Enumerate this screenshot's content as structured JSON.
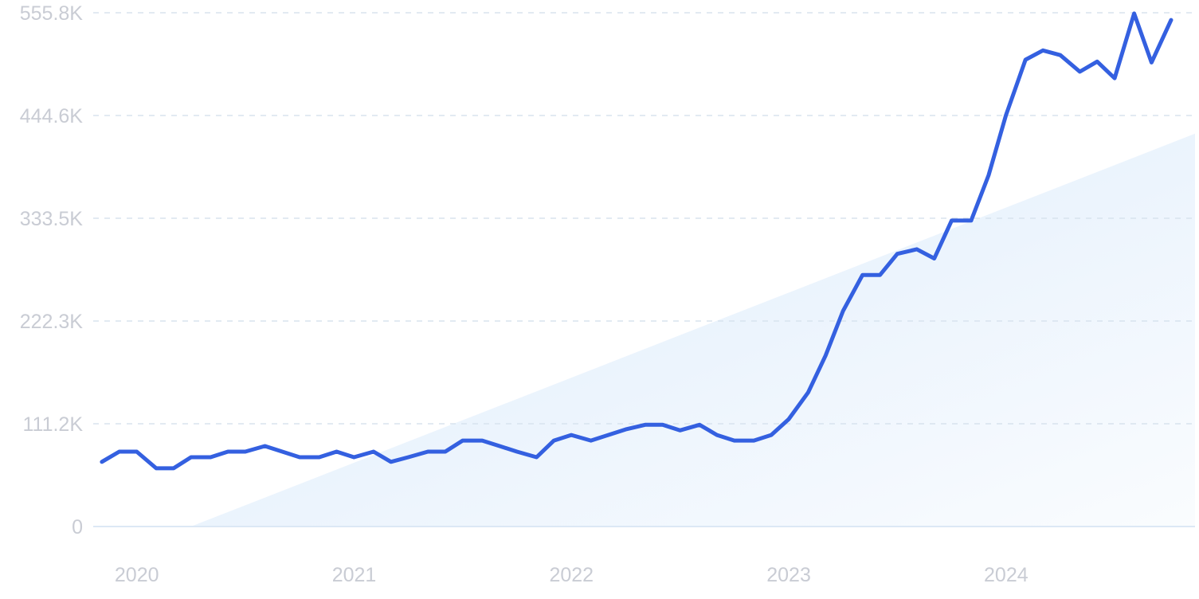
{
  "chart_data": {
    "type": "line",
    "title": "",
    "xlabel": "",
    "ylabel": "",
    "x_ticks": [
      {
        "label": "2020",
        "value": 2020.0
      },
      {
        "label": "2021",
        "value": 2021.0
      },
      {
        "label": "2022",
        "value": 2022.0
      },
      {
        "label": "2023",
        "value": 2023.0
      },
      {
        "label": "2024",
        "value": 2024.0
      }
    ],
    "y_ticks": [
      {
        "label": "0",
        "value": 0
      },
      {
        "label": "111.2K",
        "value": 111200
      },
      {
        "label": "222.3K",
        "value": 222300
      },
      {
        "label": "333.5K",
        "value": 333500
      },
      {
        "label": "444.6K",
        "value": 444600
      },
      {
        "label": "555.8K",
        "value": 555800
      }
    ],
    "xlim": [
      2019.88,
      2024.95
    ],
    "ylim": [
      0,
      555800
    ],
    "grid": true,
    "legend": "none",
    "series": [
      {
        "color": "#3460e0",
        "points": [
          [
            2019.92,
            70000
          ],
          [
            2020.0,
            81000
          ],
          [
            2020.08,
            81000
          ],
          [
            2020.17,
            63000
          ],
          [
            2020.25,
            63000
          ],
          [
            2020.33,
            75000
          ],
          [
            2020.42,
            75000
          ],
          [
            2020.5,
            81000
          ],
          [
            2020.58,
            81000
          ],
          [
            2020.67,
            87000
          ],
          [
            2020.75,
            81000
          ],
          [
            2020.83,
            75000
          ],
          [
            2020.92,
            75000
          ],
          [
            2021.0,
            81000
          ],
          [
            2021.08,
            75000
          ],
          [
            2021.17,
            81000
          ],
          [
            2021.25,
            70000
          ],
          [
            2021.33,
            75000
          ],
          [
            2021.42,
            81000
          ],
          [
            2021.5,
            81000
          ],
          [
            2021.58,
            93000
          ],
          [
            2021.67,
            93000
          ],
          [
            2021.75,
            87000
          ],
          [
            2021.83,
            81000
          ],
          [
            2021.92,
            75000
          ],
          [
            2022.0,
            93000
          ],
          [
            2022.08,
            99000
          ],
          [
            2022.17,
            93000
          ],
          [
            2022.25,
            99000
          ],
          [
            2022.33,
            105000
          ],
          [
            2022.42,
            110000
          ],
          [
            2022.5,
            110000
          ],
          [
            2022.58,
            104000
          ],
          [
            2022.67,
            110000
          ],
          [
            2022.75,
            99000
          ],
          [
            2022.83,
            93000
          ],
          [
            2022.92,
            93000
          ],
          [
            2023.0,
            99000
          ],
          [
            2023.08,
            116000
          ],
          [
            2023.17,
            145000
          ],
          [
            2023.25,
            185000
          ],
          [
            2023.33,
            233000
          ],
          [
            2023.42,
            272000
          ],
          [
            2023.5,
            272000
          ],
          [
            2023.58,
            295000
          ],
          [
            2023.67,
            300000
          ],
          [
            2023.75,
            290000
          ],
          [
            2023.83,
            331000
          ],
          [
            2023.92,
            331000
          ],
          [
            2024.0,
            380000
          ],
          [
            2024.08,
            445000
          ],
          [
            2024.17,
            505000
          ],
          [
            2024.25,
            515000
          ],
          [
            2024.33,
            510000
          ],
          [
            2024.42,
            492000
          ],
          [
            2024.5,
            503000
          ],
          [
            2024.58,
            485000
          ],
          [
            2024.67,
            555000
          ],
          [
            2024.75,
            502000
          ],
          [
            2024.84,
            548000
          ]
        ]
      }
    ],
    "trend_area": {
      "start": [
        2020.33,
        0
      ],
      "end": [
        2024.95,
        425000
      ],
      "color": "#dcebfb"
    },
    "colors": {
      "tick_label": "#c9ccd4",
      "grid": "#d8e3ee"
    }
  }
}
